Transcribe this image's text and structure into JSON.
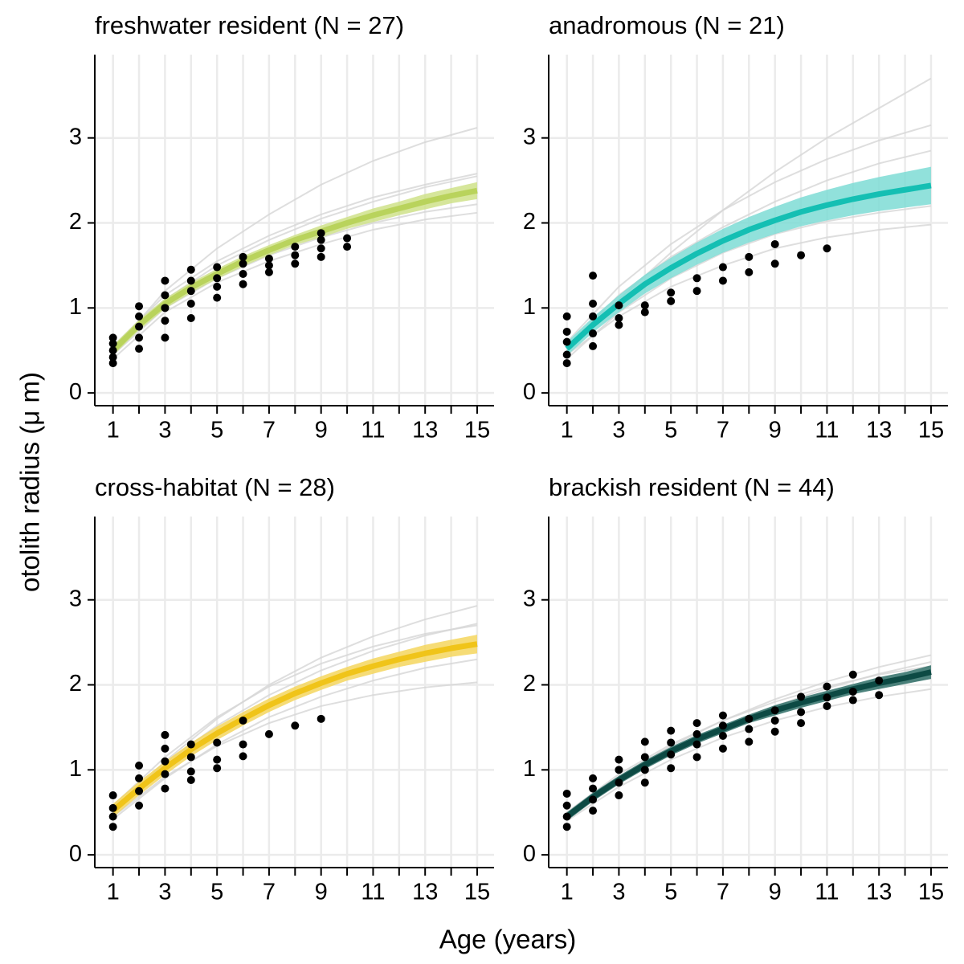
{
  "xlabel": "Age (years)",
  "ylabel": "otolith radius (μ m)",
  "chart_data": [
    {
      "type": "scatter",
      "title": "freshwater resident (N = 27)",
      "color": "#b9d35c",
      "band_color": "#cfe28a",
      "individual_color": "#d6d6d6",
      "point_color": "#000000",
      "xlim": [
        0.3,
        15.65
      ],
      "ylim": [
        -0.15,
        3.98
      ],
      "xticks": [
        1,
        3,
        5,
        7,
        9,
        11,
        13,
        15
      ],
      "xticks_minor": [
        2,
        4,
        6,
        8,
        10,
        12,
        14
      ],
      "yticks": [
        0,
        1,
        2,
        3
      ],
      "grid": true,
      "points": {
        "x": [
          1,
          1,
          1,
          1,
          1,
          2,
          2,
          2,
          2,
          2,
          3,
          3,
          3,
          3,
          3,
          4,
          4,
          4,
          4,
          4,
          5,
          5,
          5,
          5,
          6,
          6,
          6,
          6,
          7,
          7,
          7,
          8,
          8,
          8,
          9,
          9,
          9,
          9,
          10,
          10
        ],
        "values": [
          0.35,
          0.42,
          0.5,
          0.58,
          0.65,
          0.52,
          0.65,
          0.78,
          0.9,
          1.02,
          0.65,
          0.85,
          1.0,
          1.15,
          1.32,
          0.88,
          1.05,
          1.2,
          1.32,
          1.45,
          1.12,
          1.25,
          1.35,
          1.48,
          1.28,
          1.4,
          1.52,
          1.6,
          1.42,
          1.5,
          1.58,
          1.52,
          1.62,
          1.72,
          1.6,
          1.7,
          1.8,
          1.88,
          1.72,
          1.82
        ]
      },
      "fit": {
        "x": [
          1,
          2,
          3,
          4,
          5,
          6,
          7,
          8,
          9,
          10,
          11,
          12,
          13,
          14,
          15
        ],
        "values": [
          0.5,
          0.8,
          1.05,
          1.24,
          1.4,
          1.55,
          1.68,
          1.8,
          1.9,
          2.0,
          2.09,
          2.17,
          2.25,
          2.32,
          2.38
        ],
        "upper": [
          0.56,
          0.86,
          1.11,
          1.3,
          1.46,
          1.61,
          1.74,
          1.86,
          1.97,
          2.07,
          2.17,
          2.25,
          2.34,
          2.41,
          2.48
        ],
        "lower": [
          0.44,
          0.74,
          0.99,
          1.18,
          1.34,
          1.49,
          1.62,
          1.74,
          1.83,
          1.93,
          2.01,
          2.09,
          2.16,
          2.23,
          2.28
        ]
      },
      "individual_fits": {
        "x": [
          1,
          3,
          5,
          7,
          9,
          11,
          13,
          15
        ],
        "series": [
          [
            0.45,
            1.0,
            1.35,
            1.62,
            1.83,
            2.0,
            2.13,
            2.22
          ],
          [
            0.55,
            1.15,
            1.55,
            1.85,
            2.1,
            2.3,
            2.45,
            2.58
          ],
          [
            0.5,
            1.2,
            1.7,
            2.1,
            2.45,
            2.73,
            2.95,
            3.12
          ],
          [
            0.4,
            0.95,
            1.3,
            1.55,
            1.75,
            1.92,
            2.04,
            2.12
          ],
          [
            0.55,
            1.1,
            1.5,
            1.8,
            2.05,
            2.25,
            2.42,
            2.55
          ]
        ]
      }
    },
    {
      "type": "scatter",
      "title": "anadromous (N = 21)",
      "color": "#14bfb3",
      "band_color": "#7edcd5",
      "individual_color": "#d6d6d6",
      "point_color": "#000000",
      "xlim": [
        0.3,
        15.65
      ],
      "ylim": [
        -0.15,
        3.98
      ],
      "xticks": [
        1,
        3,
        5,
        7,
        9,
        11,
        13,
        15
      ],
      "xticks_minor": [
        2,
        4,
        6,
        8,
        10,
        12,
        14
      ],
      "yticks": [
        0,
        1,
        2,
        3
      ],
      "grid": true,
      "points": {
        "x": [
          1,
          1,
          1,
          1,
          1,
          2,
          2,
          2,
          2,
          2,
          3,
          3,
          3,
          4,
          4,
          5,
          5,
          6,
          6,
          7,
          7,
          8,
          8,
          9,
          9,
          10,
          11
        ],
        "values": [
          0.35,
          0.45,
          0.6,
          0.72,
          0.9,
          0.55,
          0.7,
          0.9,
          1.05,
          1.38,
          0.8,
          0.88,
          1.03,
          0.95,
          1.03,
          1.08,
          1.18,
          1.2,
          1.35,
          1.32,
          1.48,
          1.42,
          1.6,
          1.52,
          1.75,
          1.62,
          1.7
        ]
      },
      "fit": {
        "x": [
          1,
          2,
          3,
          4,
          5,
          6,
          7,
          8,
          9,
          10,
          11,
          12,
          13,
          14,
          15
        ],
        "values": [
          0.52,
          0.8,
          1.05,
          1.28,
          1.47,
          1.64,
          1.79,
          1.92,
          2.03,
          2.13,
          2.21,
          2.28,
          2.34,
          2.39,
          2.44
        ],
        "upper": [
          0.6,
          0.89,
          1.15,
          1.39,
          1.59,
          1.77,
          1.93,
          2.07,
          2.19,
          2.3,
          2.39,
          2.47,
          2.54,
          2.6,
          2.66
        ],
        "lower": [
          0.44,
          0.71,
          0.95,
          1.17,
          1.35,
          1.51,
          1.65,
          1.77,
          1.87,
          1.96,
          2.03,
          2.09,
          2.14,
          2.18,
          2.22
        ]
      },
      "individual_fits": {
        "x": [
          1,
          3,
          5,
          7,
          9,
          11,
          13,
          15
        ],
        "series": [
          [
            0.5,
            1.1,
            1.65,
            2.15,
            2.6,
            3.0,
            3.35,
            3.7
          ],
          [
            0.45,
            0.9,
            1.25,
            1.5,
            1.7,
            1.83,
            1.92,
            1.98
          ],
          [
            0.55,
            1.15,
            1.6,
            1.95,
            2.25,
            2.5,
            2.7,
            2.85
          ],
          [
            0.4,
            0.95,
            1.35,
            1.65,
            1.87,
            2.02,
            2.12,
            2.2
          ],
          [
            0.6,
            1.25,
            1.75,
            2.15,
            2.48,
            2.75,
            2.97,
            3.15
          ]
        ]
      }
    },
    {
      "type": "scatter",
      "title": "cross-habitat (N = 28)",
      "color": "#f0c419",
      "band_color": "#f5d65e",
      "individual_color": "#d6d6d6",
      "point_color": "#000000",
      "xlim": [
        0.3,
        15.65
      ],
      "ylim": [
        -0.15,
        3.98
      ],
      "xticks": [
        1,
        3,
        5,
        7,
        9,
        11,
        13,
        15
      ],
      "xticks_minor": [
        2,
        4,
        6,
        8,
        10,
        12,
        14
      ],
      "yticks": [
        0,
        1,
        2,
        3
      ],
      "grid": true,
      "points": {
        "x": [
          1,
          1,
          1,
          1,
          2,
          2,
          2,
          2,
          3,
          3,
          3,
          3,
          3,
          4,
          4,
          4,
          4,
          5,
          5,
          5,
          6,
          6,
          6,
          7,
          8,
          9
        ],
        "values": [
          0.33,
          0.45,
          0.55,
          0.7,
          0.58,
          0.75,
          0.9,
          1.05,
          0.78,
          0.95,
          1.1,
          1.25,
          1.41,
          0.88,
          0.98,
          1.15,
          1.3,
          1.02,
          1.12,
          1.32,
          1.16,
          1.3,
          1.58,
          1.42,
          1.52,
          1.6
        ]
      },
      "fit": {
        "x": [
          1,
          2,
          3,
          4,
          5,
          6,
          7,
          8,
          9,
          10,
          11,
          12,
          13,
          14,
          15
        ],
        "values": [
          0.52,
          0.78,
          1.02,
          1.24,
          1.43,
          1.6,
          1.76,
          1.9,
          2.02,
          2.13,
          2.22,
          2.3,
          2.37,
          2.43,
          2.48
        ],
        "upper": [
          0.6,
          0.86,
          1.1,
          1.32,
          1.51,
          1.68,
          1.84,
          1.98,
          2.1,
          2.21,
          2.31,
          2.39,
          2.47,
          2.53,
          2.59
        ],
        "lower": [
          0.44,
          0.7,
          0.94,
          1.16,
          1.35,
          1.52,
          1.68,
          1.82,
          1.94,
          2.05,
          2.13,
          2.21,
          2.27,
          2.33,
          2.37
        ]
      },
      "individual_fits": {
        "x": [
          1,
          3,
          5,
          7,
          9,
          11,
          13,
          15
        ],
        "series": [
          [
            0.5,
            1.1,
            1.6,
            2.0,
            2.32,
            2.57,
            2.77,
            2.93
          ],
          [
            0.45,
            0.92,
            1.28,
            1.55,
            1.75,
            1.88,
            1.97,
            2.03
          ],
          [
            0.55,
            1.08,
            1.52,
            1.88,
            2.17,
            2.4,
            2.58,
            2.72
          ],
          [
            0.42,
            0.9,
            1.3,
            1.62,
            1.86,
            2.05,
            2.2,
            2.3
          ],
          [
            0.58,
            1.15,
            1.62,
            1.98,
            2.25,
            2.45,
            2.6,
            2.7
          ]
        ]
      }
    },
    {
      "type": "scatter",
      "title": "brackish resident (N = 44)",
      "color": "#0d4a44",
      "band_color": "#2f6f67",
      "individual_color": "#d6d6d6",
      "point_color": "#000000",
      "xlim": [
        0.3,
        15.65
      ],
      "ylim": [
        -0.15,
        3.98
      ],
      "xticks": [
        1,
        3,
        5,
        7,
        9,
        11,
        13,
        15
      ],
      "xticks_minor": [
        2,
        4,
        6,
        8,
        10,
        12,
        14
      ],
      "yticks": [
        0,
        1,
        2,
        3
      ],
      "grid": true,
      "points": {
        "x": [
          1,
          1,
          1,
          1,
          2,
          2,
          2,
          2,
          3,
          3,
          3,
          3,
          4,
          4,
          4,
          4,
          5,
          5,
          5,
          5,
          6,
          6,
          6,
          6,
          7,
          7,
          7,
          7,
          8,
          8,
          8,
          9,
          9,
          9,
          10,
          10,
          10,
          11,
          11,
          11,
          12,
          12,
          12,
          13,
          13
        ],
        "values": [
          0.33,
          0.45,
          0.58,
          0.72,
          0.52,
          0.65,
          0.78,
          0.9,
          0.7,
          0.85,
          1.0,
          1.12,
          0.85,
          1.0,
          1.15,
          1.33,
          1.02,
          1.18,
          1.32,
          1.46,
          1.15,
          1.3,
          1.42,
          1.55,
          1.25,
          1.4,
          1.52,
          1.64,
          1.33,
          1.48,
          1.6,
          1.45,
          1.58,
          1.7,
          1.55,
          1.68,
          1.86,
          1.75,
          1.85,
          1.98,
          1.82,
          1.92,
          2.12,
          1.88,
          2.05
        ]
      },
      "fit": {
        "x": [
          1,
          2,
          3,
          4,
          5,
          6,
          7,
          8,
          9,
          10,
          11,
          12,
          13,
          14,
          15
        ],
        "values": [
          0.45,
          0.68,
          0.88,
          1.06,
          1.22,
          1.36,
          1.48,
          1.6,
          1.7,
          1.79,
          1.87,
          1.95,
          2.02,
          2.08,
          2.15
        ],
        "upper": [
          0.5,
          0.73,
          0.93,
          1.11,
          1.27,
          1.41,
          1.53,
          1.65,
          1.76,
          1.85,
          1.93,
          2.01,
          2.09,
          2.15,
          2.23
        ],
        "lower": [
          0.4,
          0.63,
          0.83,
          1.01,
          1.17,
          1.31,
          1.43,
          1.55,
          1.64,
          1.73,
          1.81,
          1.89,
          1.95,
          2.01,
          2.07
        ]
      },
      "individual_fits": {
        "x": [
          1,
          3,
          5,
          7,
          9,
          11,
          13,
          15
        ],
        "series": [
          [
            0.42,
            0.85,
            1.2,
            1.5,
            1.75,
            1.96,
            2.13,
            2.27
          ],
          [
            0.5,
            0.95,
            1.3,
            1.58,
            1.8,
            1.98,
            2.12,
            2.22
          ],
          [
            0.4,
            0.8,
            1.12,
            1.38,
            1.58,
            1.74,
            1.86,
            1.95
          ],
          [
            0.48,
            0.92,
            1.28,
            1.58,
            1.83,
            2.04,
            2.21,
            2.35
          ],
          [
            0.45,
            0.85,
            1.18,
            1.45,
            1.67,
            1.85,
            1.98,
            2.08
          ]
        ]
      }
    }
  ]
}
